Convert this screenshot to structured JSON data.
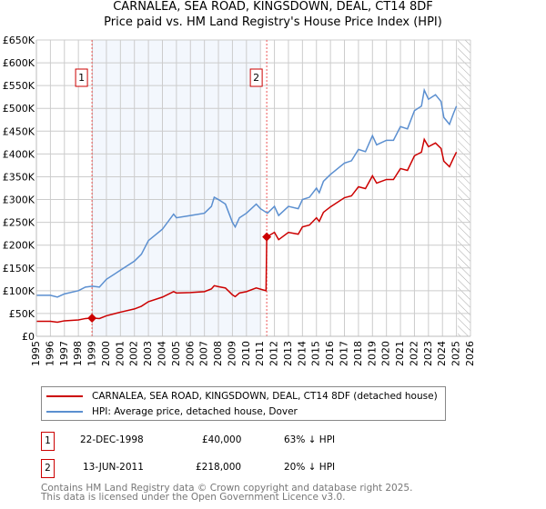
{
  "chart_data": {
    "type": "line",
    "title": "CARNALEA, SEA ROAD, KINGSDOWN, DEAL, CT14 8DF",
    "subtitle": "Price paid vs. HM Land Registry's House Price Index (HPI)",
    "xlim": [
      1995,
      2026
    ],
    "ylim": [
      0,
      650000
    ],
    "y_ticks": [
      0,
      50000,
      100000,
      150000,
      200000,
      250000,
      300000,
      350000,
      400000,
      450000,
      500000,
      550000,
      600000,
      650000
    ],
    "y_tick_labels": [
      "£0",
      "£50K",
      "£100K",
      "£150K",
      "£200K",
      "£250K",
      "£300K",
      "£350K",
      "£400K",
      "£450K",
      "£500K",
      "£550K",
      "£600K",
      "£650K"
    ],
    "x_ticks": [
      "1995",
      "1996",
      "1997",
      "1998",
      "1999",
      "2000",
      "2001",
      "2002",
      "2003",
      "2004",
      "2005",
      "2006",
      "2007",
      "2008",
      "2009",
      "2010",
      "2011",
      "2012",
      "2013",
      "2014",
      "2015",
      "2016",
      "2017",
      "2018",
      "2019",
      "2020",
      "2021",
      "2022",
      "2023",
      "2024",
      "2025",
      "2026"
    ],
    "grid": true,
    "shaded_range": [
      1998.97,
      2011.0
    ],
    "forecast_hatch_from": 2025.1,
    "series": [
      {
        "name": "CARNALEA, SEA ROAD, KINGSDOWN, DEAL, CT14 8DF (detached house)",
        "color": "#cc0000",
        "x": [
          1995,
          1996,
          1996.5,
          1997,
          1998,
          1998.5,
          1998.97,
          1999.5,
          2000,
          2001,
          2002,
          2002.5,
          2003,
          2004,
          2004.8,
          2005,
          2006,
          2007,
          2007.5,
          2007.7,
          2008,
          2008.5,
          2009,
          2009.2,
          2009.5,
          2010,
          2010.7,
          2011.4,
          2011.45,
          2012,
          2012.3,
          2013,
          2013.7,
          2014,
          2014.5,
          2015,
          2015.2,
          2015.5,
          2016,
          2017,
          2017.5,
          2018,
          2018.5,
          2019,
          2019.3,
          2020,
          2020.5,
          2021,
          2021.5,
          2022,
          2022.5,
          2022.7,
          2023,
          2023.5,
          2023.9,
          2024.1,
          2024.5,
          2024.8,
          2025.0
        ],
        "y": [
          33,
          33,
          31,
          34,
          36,
          39,
          40,
          39,
          45,
          53,
          60,
          66,
          76,
          86,
          98,
          95,
          96,
          98,
          104,
          111,
          109,
          106,
          91,
          87,
          95,
          98,
          106,
          100,
          218,
          228,
          212,
          228,
          224,
          240,
          244,
          260,
          252,
          272,
          284,
          304,
          308,
          328,
          324,
          352,
          336,
          344,
          344,
          368,
          364,
          396,
          404,
          432,
          416,
          424,
          412,
          384,
          372,
          392,
          404
        ]
      },
      {
        "name": "HPI: Average price, detached house, Dover",
        "color": "#5b8fd0",
        "x": [
          1995,
          1996,
          1996.5,
          1997,
          1998,
          1998.5,
          1999,
          1999.5,
          2000,
          2001,
          2002,
          2002.5,
          2003,
          2004,
          2004.8,
          2005,
          2006,
          2007,
          2007.5,
          2007.7,
          2008,
          2008.5,
          2009,
          2009.2,
          2009.5,
          2010,
          2010.7,
          2011,
          2011.5,
          2012,
          2012.3,
          2013,
          2013.7,
          2014,
          2014.5,
          2015,
          2015.2,
          2015.5,
          2016,
          2017,
          2017.5,
          2018,
          2018.5,
          2019,
          2019.3,
          2020,
          2020.5,
          2021,
          2021.5,
          2022,
          2022.5,
          2022.7,
          2023,
          2023.5,
          2023.9,
          2024.1,
          2024.5,
          2024.8,
          2025.0
        ],
        "y": [
          90,
          90,
          86,
          93,
          100,
          108,
          110,
          108,
          125,
          145,
          165,
          180,
          210,
          235,
          268,
          260,
          265,
          270,
          285,
          305,
          300,
          290,
          250,
          240,
          260,
          270,
          290,
          280,
          270,
          285,
          265,
          285,
          280,
          300,
          305,
          325,
          315,
          340,
          355,
          380,
          385,
          410,
          405,
          440,
          420,
          430,
          430,
          460,
          455,
          495,
          505,
          540,
          520,
          530,
          515,
          480,
          465,
          490,
          505
        ]
      }
    ],
    "y_unit": "thousands GBP",
    "annotations": [
      {
        "label": "1",
        "x": 1998.97,
        "y": 40
      },
      {
        "label": "2",
        "x": 2011.45,
        "y": 218
      }
    ]
  },
  "legend": {
    "property": "CARNALEA, SEA ROAD, KINGSDOWN, DEAL, CT14 8DF (detached house)",
    "hpi": "HPI: Average price, detached house, Dover"
  },
  "sales": [
    {
      "num": "1",
      "date": "22-DEC-1998",
      "price": "£40,000",
      "hpi": "63% ↓ HPI"
    },
    {
      "num": "2",
      "date": "13-JUN-2011",
      "price": "£218,000",
      "hpi": "20% ↓ HPI"
    }
  ],
  "footer": {
    "line1": "Contains HM Land Registry data © Crown copyright and database right 2025.",
    "line2": "This data is licensed under the Open Government Licence v3.0."
  }
}
